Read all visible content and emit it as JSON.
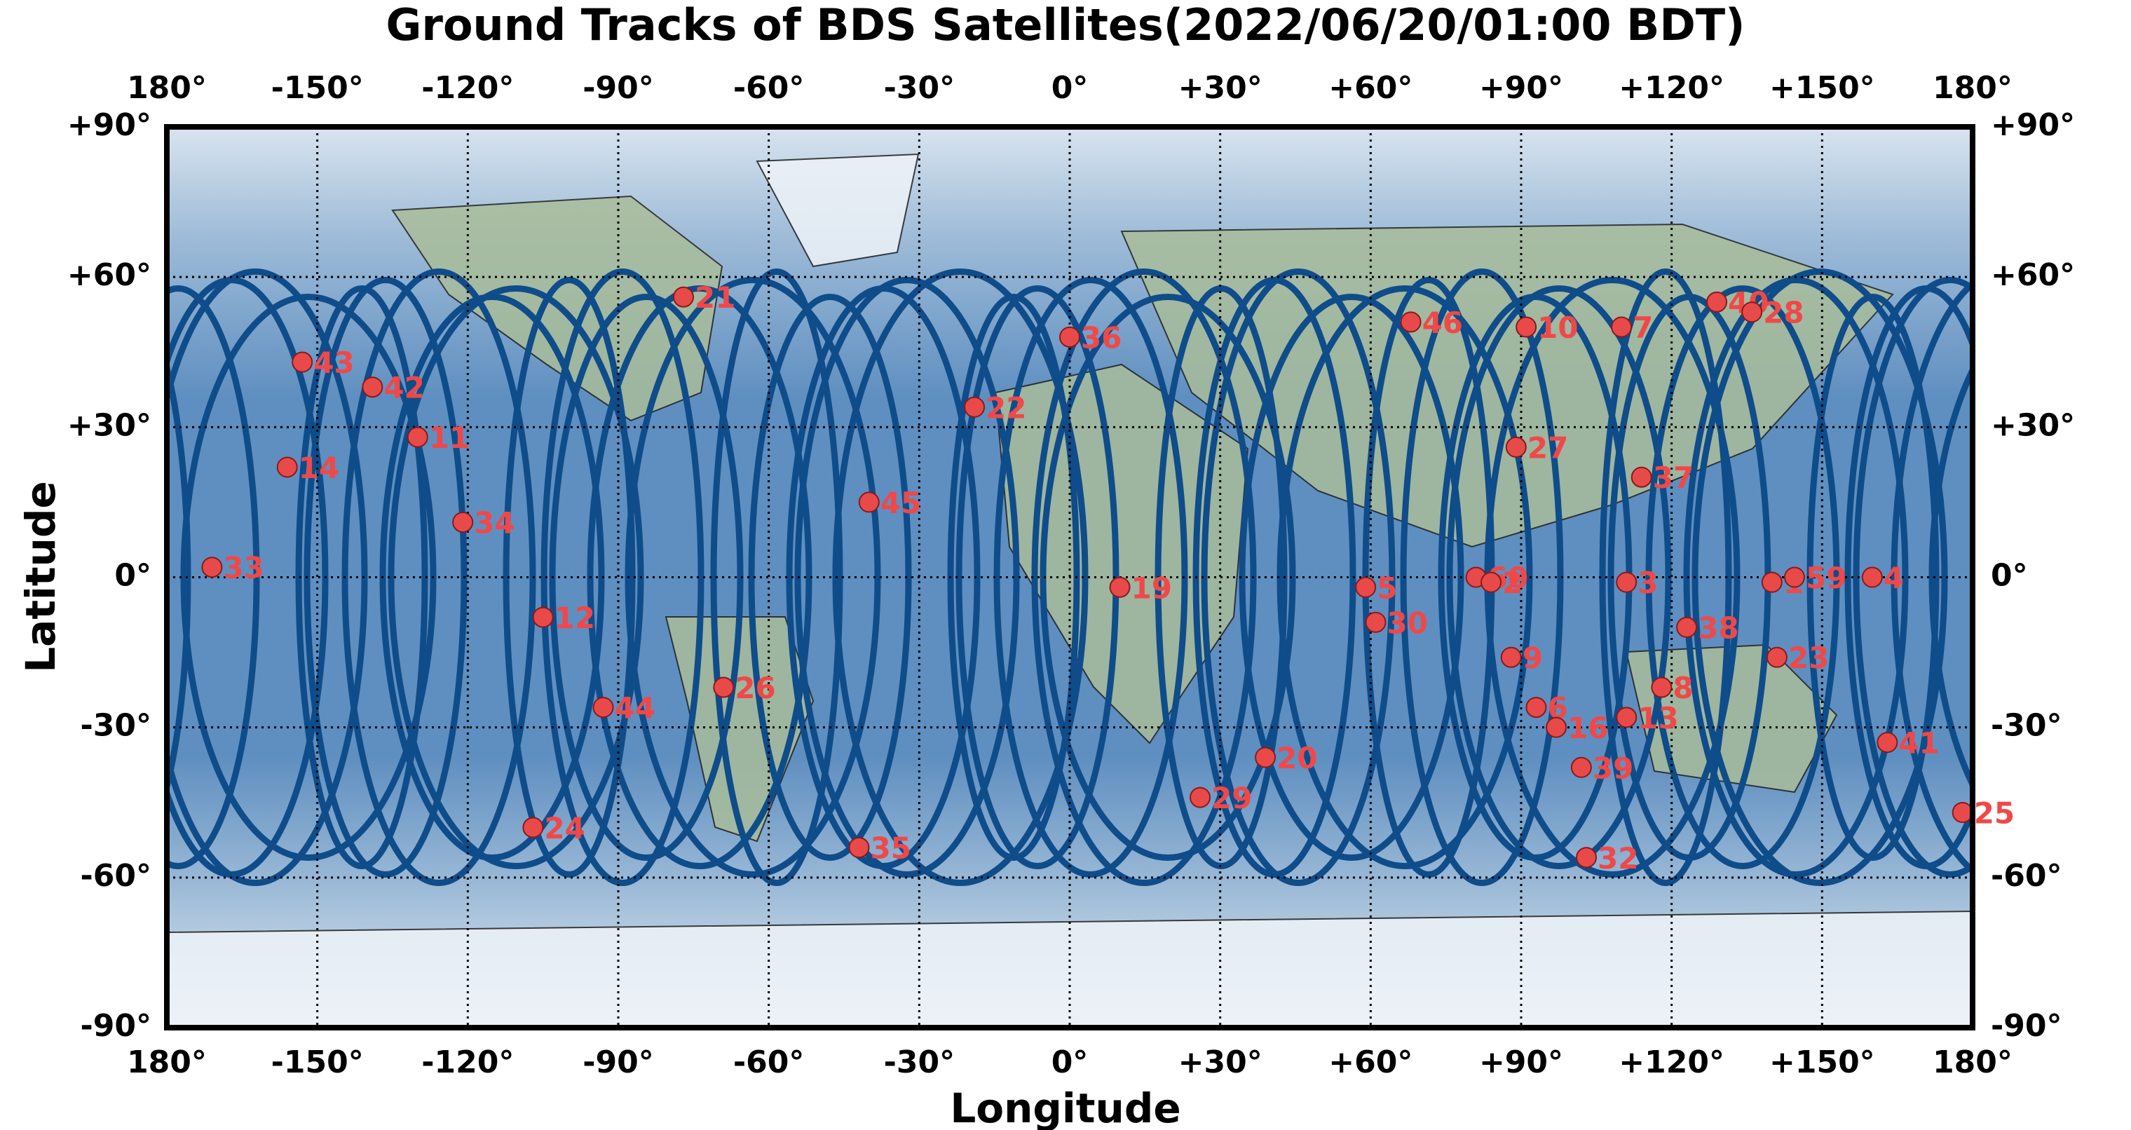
{
  "chart_data": {
    "type": "scatter",
    "title": "Ground Tracks of BDS Satellites(2022/06/20/01:00 BDT)",
    "xlabel": "Longitude",
    "ylabel": "Latitude",
    "xlim": [
      -180,
      180
    ],
    "ylim": [
      -90,
      90
    ],
    "xticks": [
      {
        "value": -180,
        "label": "180°"
      },
      {
        "value": -150,
        "label": "-150°"
      },
      {
        "value": -120,
        "label": "-120°"
      },
      {
        "value": -90,
        "label": "-90°"
      },
      {
        "value": -60,
        "label": "-60°"
      },
      {
        "value": -30,
        "label": "-30°"
      },
      {
        "value": 0,
        "label": "0°"
      },
      {
        "value": 30,
        "label": "+30°"
      },
      {
        "value": 60,
        "label": "+60°"
      },
      {
        "value": 90,
        "label": "+90°"
      },
      {
        "value": 120,
        "label": "+120°"
      },
      {
        "value": 150,
        "label": "+150°"
      },
      {
        "value": 180,
        "label": "180°"
      }
    ],
    "yticks": [
      {
        "value": -90,
        "label": "-90°"
      },
      {
        "value": -60,
        "label": "-60°"
      },
      {
        "value": -30,
        "label": "-30°"
      },
      {
        "value": 0,
        "label": "0°"
      },
      {
        "value": 30,
        "label": "+30°"
      },
      {
        "value": 60,
        "label": "+60°"
      },
      {
        "value": 90,
        "label": "+90°"
      }
    ],
    "grid": true,
    "series": [
      {
        "color": "#e84a4a",
        "labels": [
          "21",
          "36",
          "46",
          "10",
          "7",
          "40",
          "28",
          "43",
          "42",
          "11",
          "22",
          "27",
          "14",
          "37",
          "34",
          "45",
          "33",
          "19",
          "5",
          "60",
          "2",
          "3",
          "1",
          "59",
          "4",
          "12",
          "30",
          "38",
          "9",
          "23",
          "26",
          "8",
          "6",
          "44",
          "13",
          "16",
          "41",
          "20",
          "39",
          "29",
          "25",
          "24",
          "35",
          "32"
        ],
        "x": [
          -77,
          0,
          68,
          91,
          110,
          129,
          136,
          -153,
          -139,
          -130,
          -19,
          89,
          -156,
          114,
          -121,
          -40,
          -171,
          10,
          59,
          81,
          84,
          111,
          140,
          144.5,
          160,
          -105,
          61,
          123,
          88,
          141,
          -69,
          118,
          93,
          -93,
          111,
          97,
          163,
          39,
          102,
          26,
          178,
          -107,
          -42,
          103
        ],
        "values": [
          56,
          48,
          51,
          50,
          50,
          55,
          53,
          43,
          38,
          28,
          34,
          26,
          22,
          20,
          11,
          15,
          2,
          -2,
          -2,
          0,
          -1,
          -1,
          -1,
          0,
          0,
          -8,
          -9,
          -10,
          -16,
          -16,
          -22,
          -22,
          -26,
          -26,
          -28,
          -30,
          -33,
          -36,
          -38,
          -44,
          -47,
          -50,
          -54,
          -56
        ]
      }
    ]
  }
}
